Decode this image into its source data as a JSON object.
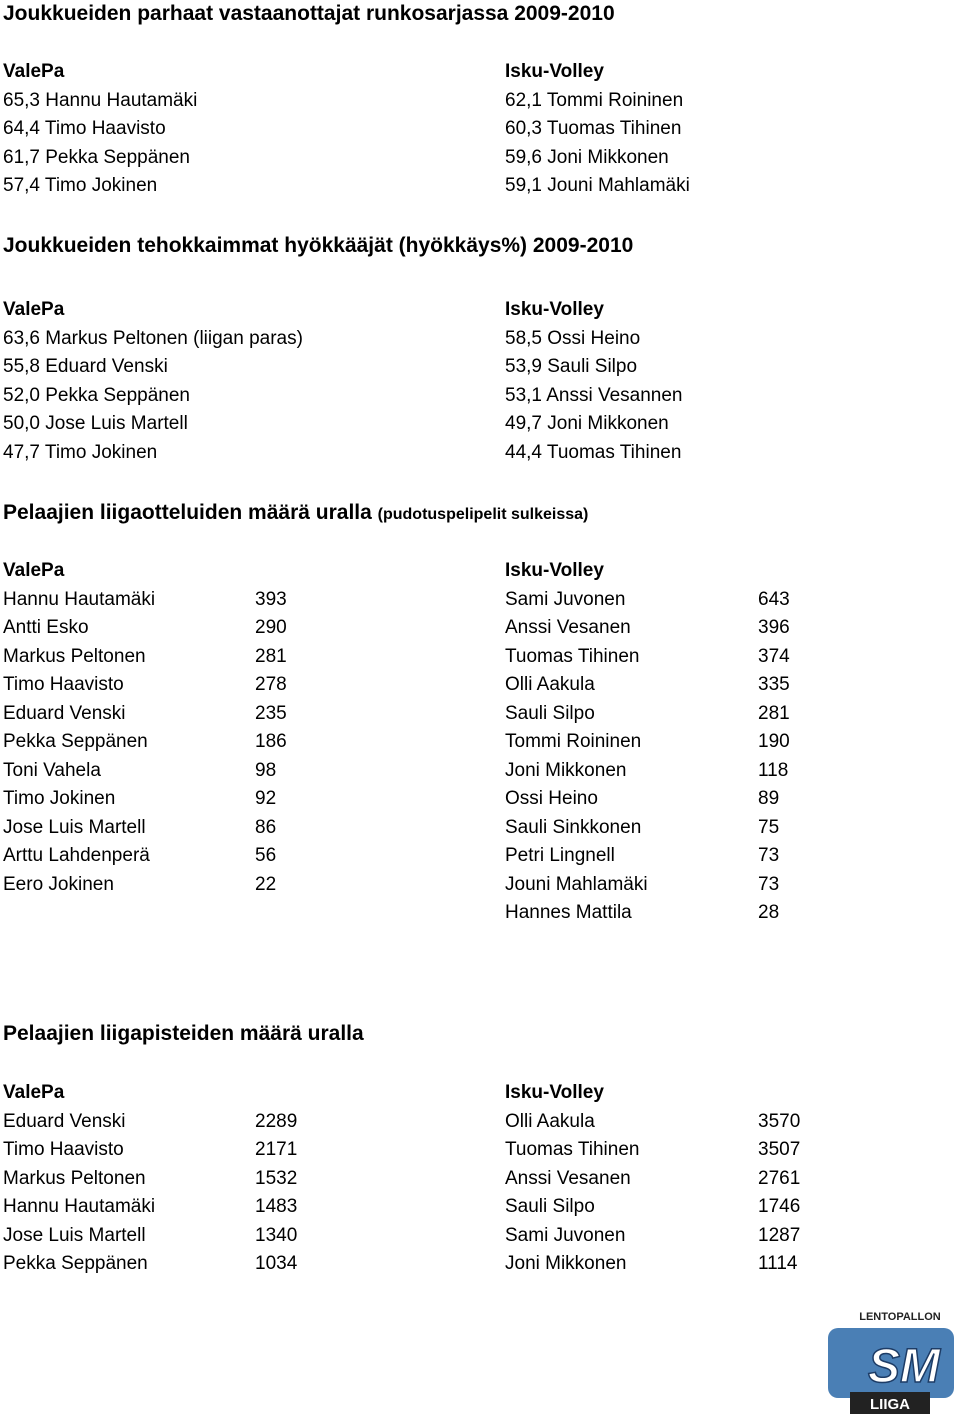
{
  "sections": [
    {
      "title": "Joukkueiden parhaat vastaanottajat runkosarjassa 2009-2010",
      "teams": [
        {
          "name": "ValePa",
          "rows": [
            "65,3 Hannu Hautamäki",
            "64,4 Timo Haavisto",
            "61,7 Pekka Seppänen",
            "57,4 Timo Jokinen"
          ]
        },
        {
          "name": "Isku-Volley",
          "rows": [
            "62,1 Tommi Roininen",
            "60,3 Tuomas Tihinen",
            "59,6 Joni Mikkonen",
            "59,1 Jouni Mahlamäki"
          ]
        }
      ]
    },
    {
      "title": "Joukkueiden tehokkaimmat hyökkääjät (hyökkäys%) 2009-2010",
      "teams": [
        {
          "name": "ValePa",
          "rows": [
            "63,6 Markus Peltonen (liigan paras)",
            "55,8 Eduard Venski",
            "52,0 Pekka Seppänen",
            "50,0 Jose Luis Martell",
            "47,7 Timo Jokinen"
          ]
        },
        {
          "name": "Isku-Volley",
          "rows": [
            "58,5 Ossi Heino",
            "53,9 Sauli Silpo",
            "53,1 Anssi Vesannen",
            "49,7 Joni Mikkonen",
            "44,4 Tuomas Tihinen"
          ]
        }
      ]
    },
    {
      "title": "Pelaajien liigaotteluiden määrä uralla",
      "subtitle": "(pudotuspelipelit sulkeissa)",
      "teams": [
        {
          "name": "ValePa",
          "rows": [
            [
              "Hannu Hautamäki",
              "393"
            ],
            [
              "Antti Esko",
              "290"
            ],
            [
              "Markus Peltonen",
              "281"
            ],
            [
              "Timo Haavisto",
              "278"
            ],
            [
              "Eduard Venski",
              "235"
            ],
            [
              "Pekka Seppänen",
              "186"
            ],
            [
              "Toni Vahela",
              "98"
            ],
            [
              "Timo Jokinen",
              "92"
            ],
            [
              "Jose Luis Martell",
              "86"
            ],
            [
              "Arttu Lahdenperä",
              "56"
            ],
            [
              "Eero Jokinen",
              "22"
            ]
          ]
        },
        {
          "name": "Isku-Volley",
          "rows": [
            [
              "Sami Juvonen",
              "643"
            ],
            [
              "Anssi Vesanen",
              "396"
            ],
            [
              "Tuomas Tihinen",
              "374"
            ],
            [
              "Olli Aakula",
              "335"
            ],
            [
              "Sauli Silpo",
              "281"
            ],
            [
              "Tommi Roininen",
              "190"
            ],
            [
              "Joni Mikkonen",
              "118"
            ],
            [
              "Ossi Heino",
              "89"
            ],
            [
              "Sauli Sinkkonen",
              "75"
            ],
            [
              "Petri Lingnell",
              "73"
            ],
            [
              "Jouni Mahlamäki",
              "73"
            ],
            [
              "Hannes Mattila",
              "28"
            ]
          ]
        }
      ]
    },
    {
      "title": "Pelaajien liigapisteiden määrä uralla",
      "teams": [
        {
          "name": "ValePa",
          "rows": [
            [
              "Eduard Venski",
              "2289"
            ],
            [
              "Timo Haavisto",
              "2171"
            ],
            [
              "Markus Peltonen",
              "1532"
            ],
            [
              "Hannu Hautamäki",
              "1483"
            ],
            [
              "Jose Luis Martell",
              "1340"
            ],
            [
              "Pekka Seppänen",
              "1034"
            ]
          ]
        },
        {
          "name": "Isku-Volley",
          "rows": [
            [
              "Olli Aakula",
              "3570"
            ],
            [
              "Tuomas Tihinen",
              "3507"
            ],
            [
              "Anssi Vesanen",
              "2761"
            ],
            [
              "Sauli Silpo",
              "1746"
            ],
            [
              "Sami Juvonen",
              "1287"
            ],
            [
              "Joni Mikkonen",
              "1114"
            ]
          ]
        }
      ]
    }
  ],
  "logo": {
    "top": "LENTOPALLON",
    "mark": "SM",
    "bottom": "LIIGA"
  }
}
